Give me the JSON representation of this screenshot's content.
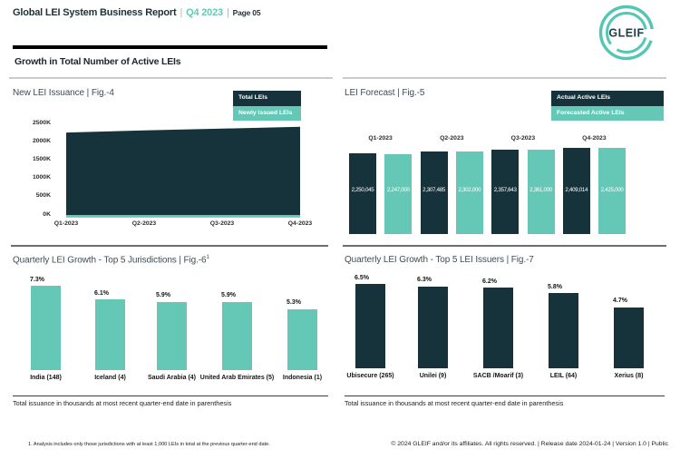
{
  "header": {
    "title": "Global LEI System Business Report",
    "sep": "|",
    "period": "Q4 2023",
    "page_label": "Page 05",
    "logo_text": "GLEIF",
    "section_heading": "Growth in Total Number of Active LEIs"
  },
  "colors": {
    "dark": "#16333b",
    "teal": "#65c8b6",
    "period_teal": "#68c8b6",
    "logo_ring": "#53c6b4"
  },
  "chart_data": [
    {
      "id": "fig4",
      "type": "area",
      "title": "New LEI Issuance | Fig.-4",
      "x": [
        "Q1-2023",
        "Q2-2023",
        "Q3-2023",
        "Q4-2023"
      ],
      "y_ticks": [
        "2500K",
        "2000K",
        "1500K",
        "1000K",
        "500K",
        "0K"
      ],
      "ylim": [
        0,
        2500000
      ],
      "legend": [
        {
          "label": "Total LEIs",
          "color": "dark"
        },
        {
          "label": "Newly Issued LEIs",
          "color": "teal"
        }
      ],
      "series": [
        {
          "name": "Total LEIs",
          "values": [
            2250045,
            2307485,
            2357643,
            2409014
          ]
        },
        {
          "name": "Newly Issued LEIs",
          "values": [
            70000,
            70000,
            70000,
            70000
          ]
        }
      ]
    },
    {
      "id": "fig5",
      "type": "bar",
      "title": "LEI Forecast | Fig.-5",
      "categories": [
        "Q1-2023",
        "Q2-2023",
        "Q3-2023",
        "Q4-2023"
      ],
      "legend": [
        {
          "label": "Actual Active LEIs",
          "color": "dark"
        },
        {
          "label": "Forecasted Active LEIs",
          "color": "teal"
        }
      ],
      "series": [
        {
          "name": "Actual Active LEIs",
          "values": [
            2250045,
            2307485,
            2357643,
            2409014
          ]
        },
        {
          "name": "Forecasted Active LEIs",
          "values": [
            2247000,
            2302000,
            2361000,
            2425000
          ]
        }
      ]
    },
    {
      "id": "fig6",
      "type": "bar",
      "title": "Quarterly LEI Growth - Top 5 Jurisdictions | Fig.-6",
      "title_sup": "1",
      "categories": [
        "India (148)",
        "Iceland (4)",
        "Saudi Arabia (4)",
        "United Arab Emirates (5)",
        "Indonesia (1)"
      ],
      "values": [
        7.3,
        6.1,
        5.9,
        5.9,
        5.3
      ],
      "unit": "%",
      "footnote": "Total issuance in thousands at most recent quarter-end date in parenthesis"
    },
    {
      "id": "fig7",
      "type": "bar",
      "title": "Quarterly LEI Growth - Top 5 LEI Issuers | Fig.-7",
      "categories": [
        "Ubisecure (265)",
        "Unilei (9)",
        "SACB /Moarif (3)",
        "LEIL (64)",
        "Xerius (8)"
      ],
      "values": [
        6.5,
        6.3,
        6.2,
        5.8,
        4.7
      ],
      "unit": "%",
      "footnote": "Total issuance in thousands at most recent quarter-end date in parenthesis"
    }
  ],
  "footer": {
    "footnote1": "1. Analysis includes only those jurisdictions with at least 1,000 LEIs in total at the previous quarter-end date.",
    "copyright": "© 2024 GLEIF and/or its affiliates. All rights reserved.  | Release date 2024-01-24 | Version 1.0 | Public"
  }
}
